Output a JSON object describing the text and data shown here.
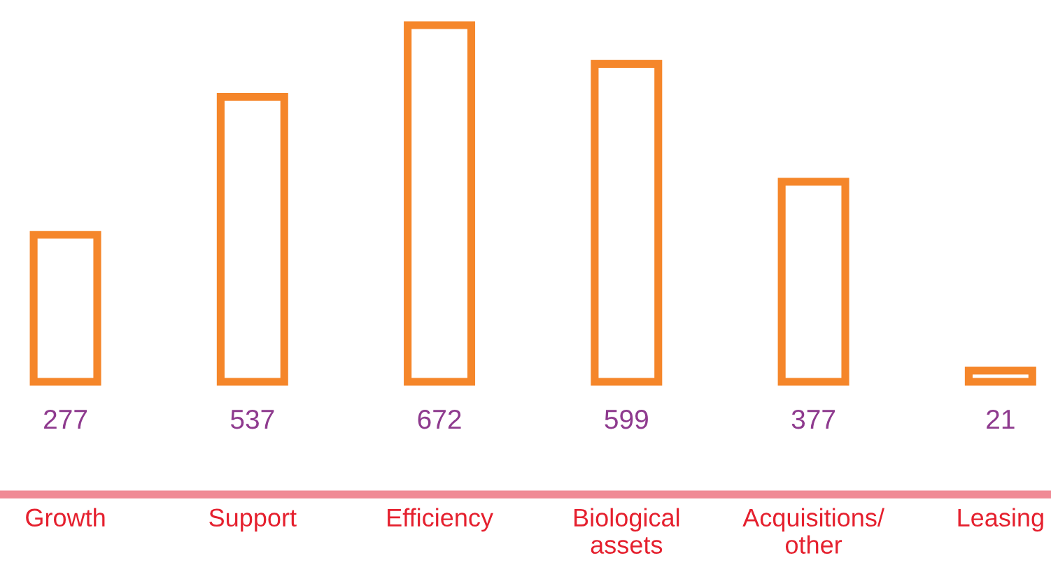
{
  "chart_data": {
    "type": "bar",
    "categories": [
      "Growth",
      "Support",
      "Efficiency",
      "Biological\nassets",
      "Acquisitions/\nother",
      "Leasing"
    ],
    "values": [
      277,
      537,
      672,
      599,
      377,
      21
    ],
    "color": "#f5862a",
    "data_labels": true,
    "grid": false,
    "legend": false
  }
}
